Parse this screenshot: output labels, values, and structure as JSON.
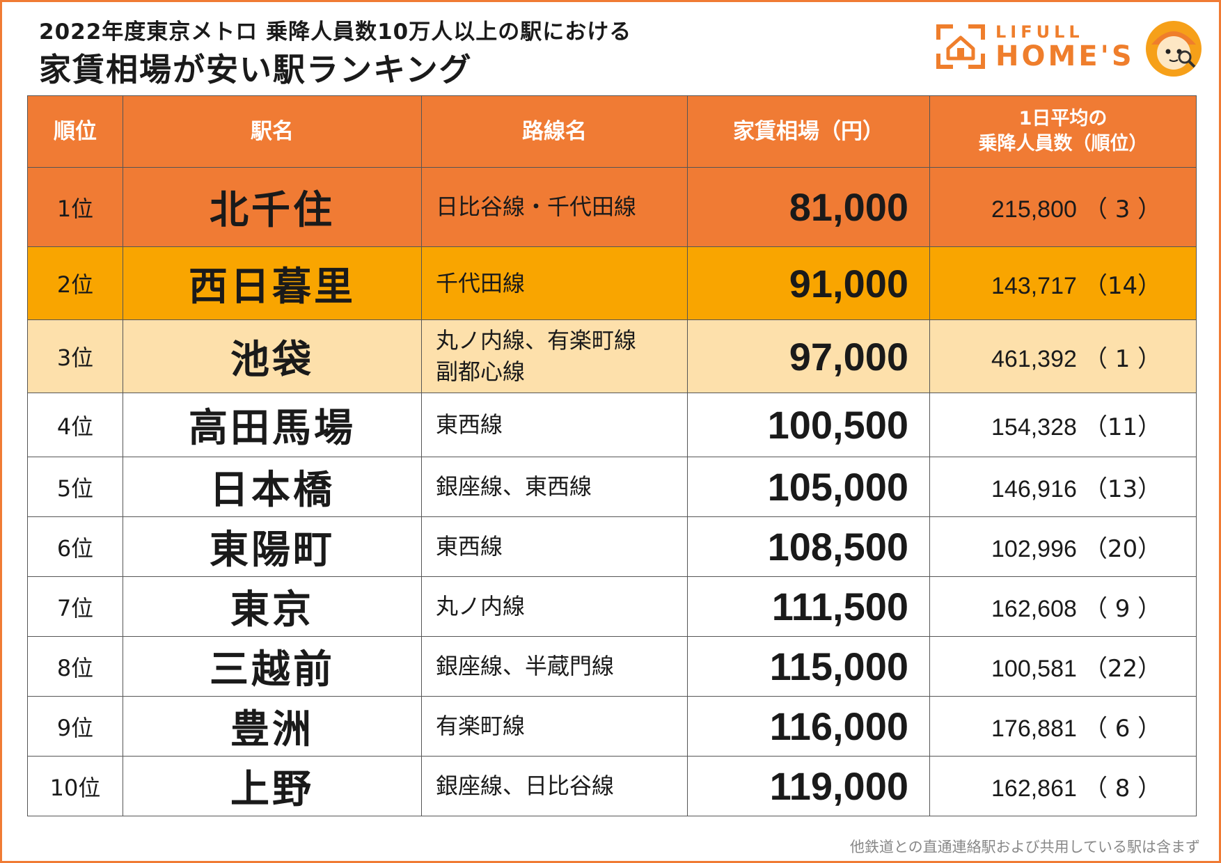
{
  "header": {
    "title_line1": "2022年度東京メトロ 乗降人員数10万人以上の駅における",
    "title_line2": "家賃相場が安い駅ランキング",
    "logo_top": "LIFULL",
    "logo_main": "HOME'S",
    "brand_color": "#f07b34"
  },
  "table": {
    "columns": {
      "rank": "順位",
      "station": "駅名",
      "line": "路線名",
      "rent": "家賃相場（円）",
      "riders_line1": "1日平均の",
      "riders_line2": "乗降人員数（順位）"
    },
    "rows": [
      {
        "rank": "1位",
        "station": "北千住",
        "line1": "日比谷線・千代田線",
        "line2": "",
        "rent": "81,000",
        "riders": "215,800",
        "riders_rank": "（ 3 ）"
      },
      {
        "rank": "2位",
        "station": "西日暮里",
        "line1": "千代田線",
        "line2": "",
        "rent": "91,000",
        "riders": "143,717",
        "riders_rank": "（14）"
      },
      {
        "rank": "3位",
        "station": "池袋",
        "line1": "丸ノ内線、有楽町線",
        "line2": "副都心線",
        "rent": "97,000",
        "riders": "461,392",
        "riders_rank": "（ 1 ）"
      },
      {
        "rank": "4位",
        "station": "高田馬場",
        "line1": "東西線",
        "line2": "",
        "rent": "100,500",
        "riders": "154,328",
        "riders_rank": "（11）"
      },
      {
        "rank": "5位",
        "station": "日本橋",
        "line1": "銀座線、東西線",
        "line2": "",
        "rent": "105,000",
        "riders": "146,916",
        "riders_rank": "（13）"
      },
      {
        "rank": "6位",
        "station": "東陽町",
        "line1": "東西線",
        "line2": "",
        "rent": "108,500",
        "riders": "102,996",
        "riders_rank": "（20）"
      },
      {
        "rank": "7位",
        "station": "東京",
        "line1": "丸ノ内線",
        "line2": "",
        "rent": "111,500",
        "riders": "162,608",
        "riders_rank": "（ 9 ）"
      },
      {
        "rank": "8位",
        "station": "三越前",
        "line1": "銀座線、半蔵門線",
        "line2": "",
        "rent": "115,000",
        "riders": "100,581",
        "riders_rank": "（22）"
      },
      {
        "rank": "9位",
        "station": "豊洲",
        "line1": "有楽町線",
        "line2": "",
        "rent": "116,000",
        "riders": "176,881",
        "riders_rank": "（ 6 ）"
      },
      {
        "rank": "10位",
        "station": "上野",
        "line1": "銀座線、日比谷線",
        "line2": "",
        "rent": "119,000",
        "riders": "162,861",
        "riders_rank": "（ 8 ）"
      }
    ]
  },
  "footnote": "他鉄道との直通連絡駅および共用している駅は含まず",
  "icons": [
    "house-logo-icon",
    "mascot-icon"
  ]
}
